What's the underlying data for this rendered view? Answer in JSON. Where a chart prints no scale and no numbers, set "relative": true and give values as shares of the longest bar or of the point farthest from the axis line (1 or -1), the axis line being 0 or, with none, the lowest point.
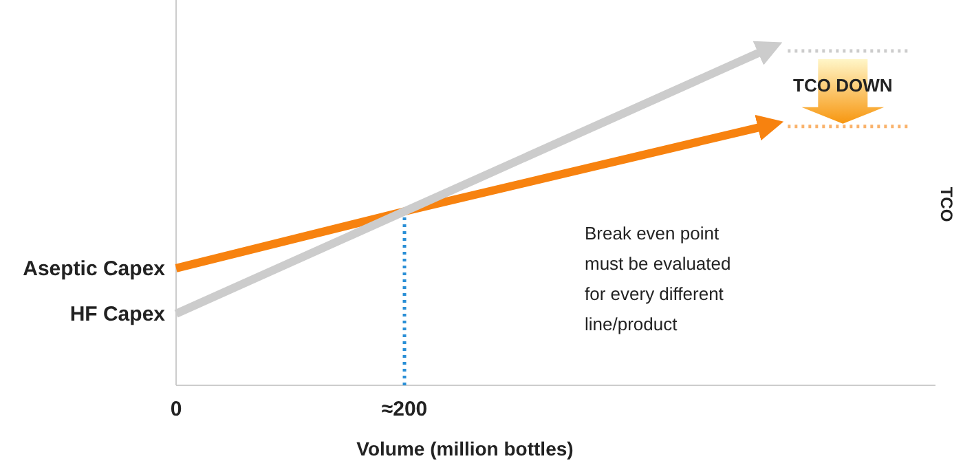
{
  "chart_data": {
    "type": "line",
    "relative": true,
    "xlabel": "Volume (million bottles)",
    "ylabel": "TCO",
    "xlim": [
      0,
      665
    ],
    "xticks": [
      0,
      {
        "value": 200,
        "label": "≈200"
      }
    ],
    "x": [
      0,
      200,
      514
    ],
    "series": [
      {
        "name": "Aseptic Capex",
        "color": "#f7820f",
        "values": [
          0.35,
          0.52,
          0.774
        ]
      },
      {
        "name": "HF Capex",
        "color": "#cccccc",
        "values": [
          0.214,
          0.52,
          1
        ]
      }
    ],
    "ref_lines": [
      {
        "axis": "x",
        "value": 200,
        "color": "#2a8fd6",
        "line_style": "dotted"
      },
      {
        "axis": "y",
        "value": 1,
        "color": "#cccccc",
        "line_style": "dotted"
      },
      {
        "axis": "y",
        "value": 0.774,
        "color": "#f9b26b",
        "line_style": "dotted"
      }
    ],
    "annotations": [
      "TCO DOWN",
      "Break even point must be evaluated for every different line/product"
    ]
  }
}
